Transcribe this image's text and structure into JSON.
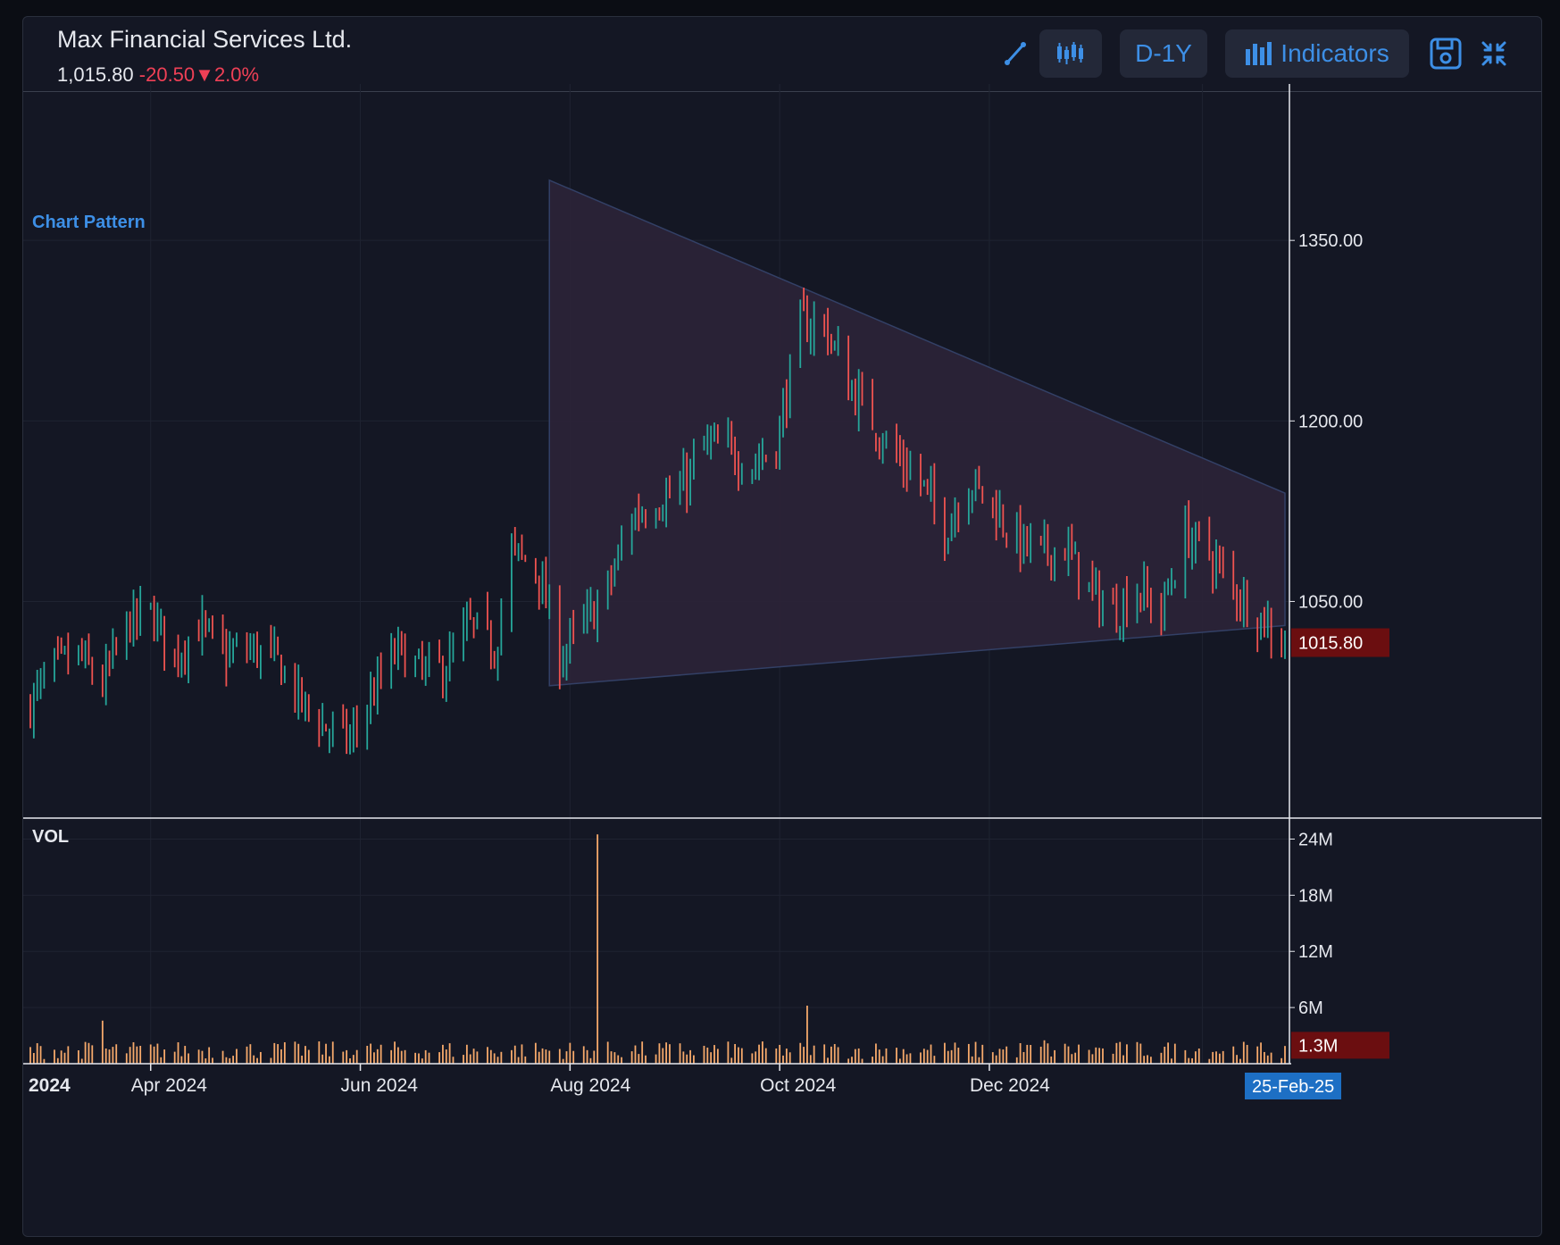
{
  "header": {
    "title": "Max Financial Services Ltd.",
    "last_price": "1,015.80",
    "change": "-20.50",
    "change_pct": "2.0%",
    "down_arrow": "▼",
    "range_button": "D-1Y",
    "indicators_button": "Indicators",
    "icons": [
      "trendline-draw-icon",
      "ohlc-bars-icon",
      "indicators-bars-icon",
      "save-icon",
      "collapse-icon"
    ]
  },
  "chart_data": {
    "type": "ohlc-bar",
    "annotation_label": "Chart Pattern",
    "pattern": {
      "name": "triangle",
      "upper_line": [
        [
          "2024-07-26",
          1400
        ],
        [
          "2025-02-25",
          1140
        ]
      ],
      "lower_line": [
        [
          "2024-07-26",
          980
        ],
        [
          "2025-02-25",
          1030
        ]
      ]
    },
    "price_axis": {
      "ylim": [
        870,
        1480
      ],
      "ticks": [
        1050,
        1200,
        1350
      ],
      "tick_labels": [
        "1050.00",
        "1200.00",
        "1350.00"
      ]
    },
    "last_price_label": "1015.80",
    "volume_label": "VOL",
    "volume_axis": {
      "ylim": [
        0,
        25
      ],
      "unit": "M",
      "ticks": [
        6,
        12,
        18,
        24
      ],
      "tick_labels": [
        "6M",
        "12M",
        "18M",
        "24M"
      ]
    },
    "last_volume_label": "1.3M",
    "x_axis_labels": [
      "2024",
      "Apr 2024",
      "Jun 2024",
      "Aug 2024",
      "Oct 2024",
      "Dec 2024"
    ],
    "current_date_label": "25-Feb-25",
    "price_anchors": [
      [
        "2024-02-26",
        965
      ],
      [
        "2024-03-04",
        995
      ],
      [
        "2024-03-11",
        1005
      ],
      [
        "2024-03-18",
        980
      ],
      [
        "2024-03-25",
        1030
      ],
      [
        "2024-04-01",
        1040
      ],
      [
        "2024-04-08",
        1005
      ],
      [
        "2024-04-15",
        1030
      ],
      [
        "2024-04-22",
        1005
      ],
      [
        "2024-05-01",
        1010
      ],
      [
        "2024-05-08",
        1000
      ],
      [
        "2024-05-15",
        965
      ],
      [
        "2024-05-22",
        945
      ],
      [
        "2024-05-29",
        935
      ],
      [
        "2024-06-05",
        975
      ],
      [
        "2024-06-12",
        1010
      ],
      [
        "2024-06-19",
        990
      ],
      [
        "2024-06-26",
        995
      ],
      [
        "2024-07-03",
        1030
      ],
      [
        "2024-07-10",
        1010
      ],
      [
        "2024-07-15",
        1090
      ],
      [
        "2024-07-22",
        1080
      ],
      [
        "2024-07-29",
        1005
      ],
      [
        "2024-08-05",
        1030
      ],
      [
        "2024-08-12",
        1060
      ],
      [
        "2024-08-19",
        1120
      ],
      [
        "2024-08-26",
        1135
      ],
      [
        "2024-09-02",
        1140
      ],
      [
        "2024-09-09",
        1180
      ],
      [
        "2024-09-16",
        1175
      ],
      [
        "2024-09-23",
        1165
      ],
      [
        "2024-09-30",
        1180
      ],
      [
        "2024-10-07",
        1280
      ],
      [
        "2024-10-14",
        1280
      ],
      [
        "2024-10-21",
        1230
      ],
      [
        "2024-10-28",
        1200
      ],
      [
        "2024-11-04",
        1170
      ],
      [
        "2024-11-11",
        1150
      ],
      [
        "2024-11-18",
        1110
      ],
      [
        "2024-11-25",
        1150
      ],
      [
        "2024-12-02",
        1130
      ],
      [
        "2024-12-09",
        1100
      ],
      [
        "2024-12-16",
        1090
      ],
      [
        "2024-12-23",
        1095
      ],
      [
        "2024-12-30",
        1060
      ],
      [
        "2025-01-06",
        1040
      ],
      [
        "2025-01-13",
        1060
      ],
      [
        "2025-01-20",
        1040
      ],
      [
        "2025-01-27",
        1105
      ],
      [
        "2025-02-03",
        1090
      ],
      [
        "2025-02-10",
        1060
      ],
      [
        "2025-02-17",
        1040
      ],
      [
        "2025-02-25",
        1015
      ]
    ],
    "volume_spikes": [
      [
        "2024-08-09",
        24.5
      ],
      [
        "2024-10-09",
        6.2
      ],
      [
        "2024-03-18",
        4.6
      ],
      [
        "2024-12-17",
        2.5
      ]
    ]
  },
  "colors": {
    "background": "#141724",
    "up_bar": "#26a69a",
    "down_bar": "#ef5350",
    "volume_bar": "#f6a96b",
    "pattern_fill": "#2b2438",
    "pattern_stroke": "#334066",
    "accent": "#3d8fe6",
    "last_price_bg": "#6b0e10",
    "date_badge_bg": "#1d6fc4"
  }
}
